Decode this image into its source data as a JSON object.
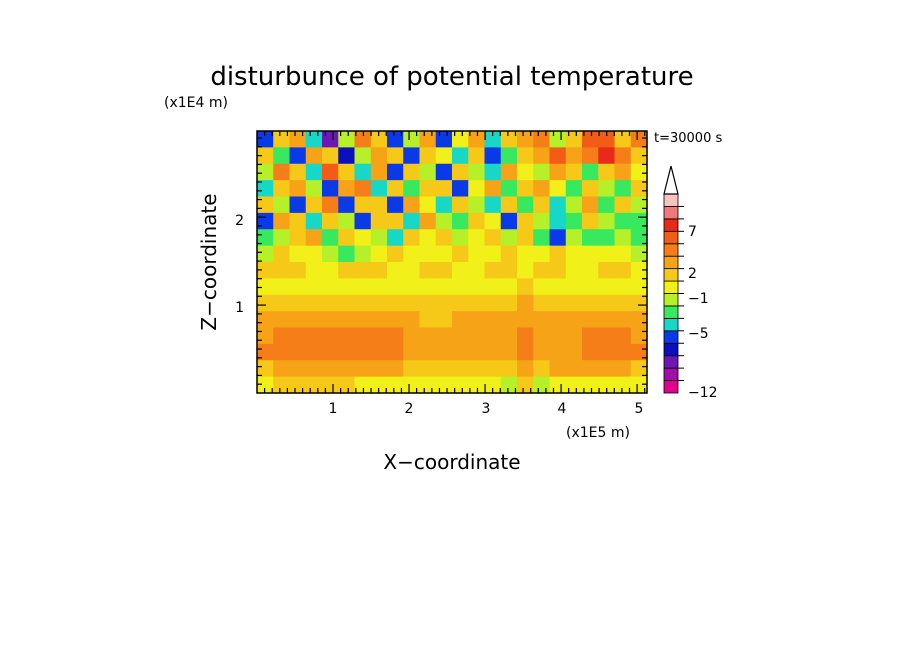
{
  "chart_data": {
    "type": "heatmap",
    "title": "disturbunce of potential temperature",
    "xlabel": "X−coordinate",
    "ylabel": "Z−coordinate",
    "x_unit": "(x1E5 m)",
    "y_unit": "(x1E4 m)",
    "time_label": "t=30000 s",
    "xlim": [
      0,
      5.13
    ],
    "ylim": [
      0,
      2.98
    ],
    "x_ticks": [
      "1",
      "2",
      "3",
      "4",
      "5"
    ],
    "y_ticks": [
      "1",
      "2"
    ],
    "colorbar": {
      "labels": [
        "7",
        "2",
        "−1",
        "−5",
        "−12"
      ],
      "colors": [
        "#e4008e",
        "#a00fa8",
        "#6a17b5",
        "#0a10c0",
        "#0a3ae8",
        "#17d7c6",
        "#38e85e",
        "#b6f028",
        "#f1f018",
        "#f6c818",
        "#f6a318",
        "#f57e19",
        "#f25c16",
        "#e82a1a",
        "#f07a7a",
        "#f8c2c2"
      ],
      "extend_top_arrow": true
    },
    "z_rows_top_to_bottom": [
      [
        -5,
        2,
        3,
        -2,
        -8,
        0,
        4,
        2,
        -4,
        0,
        3,
        -5,
        1,
        3,
        -3,
        2,
        3,
        4,
        0,
        2,
        5,
        6,
        2,
        4
      ],
      [
        2,
        -1,
        -5,
        3,
        2,
        -6,
        0,
        3,
        2,
        -5,
        2,
        1,
        -3,
        2,
        -5,
        -1,
        2,
        3,
        5,
        3,
        4,
        7,
        4,
        2
      ],
      [
        0,
        4,
        2,
        -3,
        5,
        2,
        -2,
        3,
        -4,
        2,
        0,
        -5,
        2,
        0,
        -2,
        3,
        1,
        0,
        3,
        2,
        -1,
        2,
        3,
        1
      ],
      [
        -3,
        2,
        3,
        0,
        -5,
        3,
        4,
        -2,
        2,
        -1,
        2,
        2,
        -5,
        1,
        3,
        -1,
        2,
        3,
        1,
        -1,
        2,
        0,
        -1,
        2
      ],
      [
        2,
        0,
        -5,
        2,
        4,
        -5,
        2,
        2,
        -5,
        3,
        1,
        -2,
        2,
        0,
        -3,
        2,
        -1,
        2,
        -2,
        0,
        3,
        -1,
        2,
        0
      ],
      [
        -5,
        3,
        2,
        -3,
        2,
        0,
        -5,
        2,
        2,
        -2,
        3,
        0,
        -1,
        2,
        1,
        -4,
        2,
        0,
        -3,
        -1,
        2,
        0,
        -1,
        -1
      ],
      [
        -1,
        0,
        2,
        3,
        -1,
        2,
        1,
        0,
        -2,
        2,
        1,
        2,
        0,
        1,
        2,
        0,
        2,
        -1,
        -5,
        0,
        -1,
        -1,
        0,
        -1
      ],
      [
        0,
        2,
        1,
        1,
        0,
        -1,
        0,
        1,
        2,
        1,
        1,
        1,
        2,
        1,
        1,
        2,
        1,
        1,
        2,
        1,
        1,
        1,
        1,
        0
      ],
      [
        2,
        2,
        2,
        1,
        1,
        2,
        2,
        2,
        1,
        1,
        2,
        2,
        1,
        1,
        2,
        2,
        1,
        2,
        2,
        1,
        1,
        2,
        2,
        1
      ],
      [
        1,
        1,
        1,
        1,
        1,
        1,
        1,
        1,
        1,
        1,
        1,
        1,
        1,
        1,
        1,
        1,
        2,
        1,
        1,
        1,
        1,
        1,
        1,
        1
      ],
      [
        2,
        2,
        2,
        2,
        2,
        2,
        2,
        2,
        2,
        2,
        2,
        2,
        2,
        2,
        2,
        2,
        3,
        2,
        2,
        2,
        2,
        2,
        2,
        2
      ],
      [
        3,
        3,
        3,
        3,
        3,
        3,
        3,
        3,
        3,
        3,
        2,
        2,
        3,
        3,
        3,
        3,
        3,
        3,
        3,
        3,
        3,
        3,
        3,
        3
      ],
      [
        3,
        4,
        4,
        4,
        4,
        4,
        4,
        4,
        4,
        3,
        3,
        3,
        3,
        3,
        3,
        3,
        4,
        3,
        3,
        3,
        4,
        4,
        4,
        3
      ],
      [
        4,
        4,
        4,
        4,
        4,
        4,
        4,
        4,
        4,
        3,
        3,
        3,
        3,
        3,
        3,
        3,
        4,
        3,
        3,
        3,
        4,
        4,
        4,
        4
      ],
      [
        2,
        3,
        3,
        3,
        3,
        3,
        3,
        3,
        3,
        2,
        2,
        2,
        2,
        2,
        2,
        2,
        3,
        2,
        3,
        3,
        3,
        3,
        3,
        2
      ],
      [
        1,
        2,
        2,
        2,
        2,
        2,
        1,
        1,
        1,
        1,
        1,
        1,
        1,
        1,
        1,
        0,
        2,
        0,
        1,
        1,
        1,
        1,
        1,
        1
      ]
    ]
  }
}
